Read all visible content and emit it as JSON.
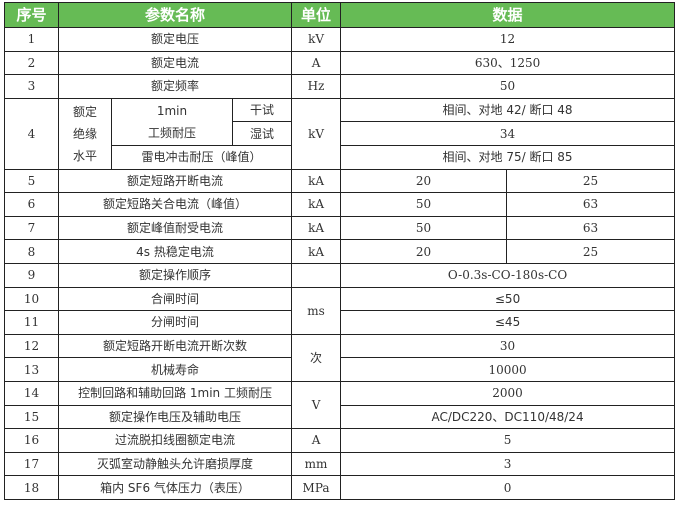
{
  "header": {
    "no": "序号",
    "name": "参数名称",
    "unit": "单位",
    "data": "数据"
  },
  "header_color": "#66bb55",
  "rows": [
    {
      "no": "1",
      "name": "额定电压",
      "unit": "kV",
      "value": "12"
    },
    {
      "no": "2",
      "name": "额定电流",
      "unit": "A",
      "value": "630、1250"
    },
    {
      "no": "3",
      "name": "额定频率",
      "unit": "Hz",
      "value": "50"
    },
    {
      "no": "4",
      "group": "额定绝缘水平",
      "group_lines": [
        "额定",
        "绝缘",
        "水平"
      ],
      "sub1_lines": [
        "1min",
        "工频耐压"
      ],
      "dry": "干试",
      "wet": "湿试",
      "lightning": "雷电冲击耐压（峰值）",
      "unit": "kV",
      "dry_value": "相间、对地 42/ 断口 48",
      "wet_value": "34",
      "lightning_value": "相间、对地 75/ 断口 85"
    },
    {
      "no": "5",
      "name": "额定短路开断电流",
      "unit": "kA",
      "values": [
        "20",
        "25"
      ]
    },
    {
      "no": "6",
      "name": "额定短路关合电流（峰值）",
      "unit": "kA",
      "values": [
        "50",
        "63"
      ]
    },
    {
      "no": "7",
      "name": "额定峰值耐受电流",
      "unit": "kA",
      "values": [
        "50",
        "63"
      ]
    },
    {
      "no": "8",
      "name": "4s 热稳定电流",
      "unit": "kA",
      "values": [
        "20",
        "25"
      ]
    },
    {
      "no": "9",
      "name": "额定操作顺序",
      "unit": "",
      "value": "O-0.3s-CO-180s-CO"
    },
    {
      "no": "10",
      "name": "合闸时间",
      "unit": "ms",
      "value": "≤50"
    },
    {
      "no": "11",
      "name": "分闸时间",
      "value": "≤45"
    },
    {
      "no": "12",
      "name": "额定短路开断电流开断次数",
      "unit": "次",
      "value": "30"
    },
    {
      "no": "13",
      "name": "机械寿命",
      "value": "10000"
    },
    {
      "no": "14",
      "name": "控制回路和辅助回路 1min 工频耐压",
      "unit": "V",
      "value": "2000"
    },
    {
      "no": "15",
      "name": "额定操作电压及辅助电压",
      "value": "AC/DC220、DC110/48/24"
    },
    {
      "no": "16",
      "name": "过流脱扣线圈额定电流",
      "unit": "A",
      "value": "5"
    },
    {
      "no": "17",
      "name": "灭弧室动静触头允许磨损厚度",
      "unit": "mm",
      "value": "3"
    },
    {
      "no": "18",
      "name": "箱内 SF6 气体压力（表压）",
      "unit": "MPa",
      "value": "0"
    }
  ]
}
